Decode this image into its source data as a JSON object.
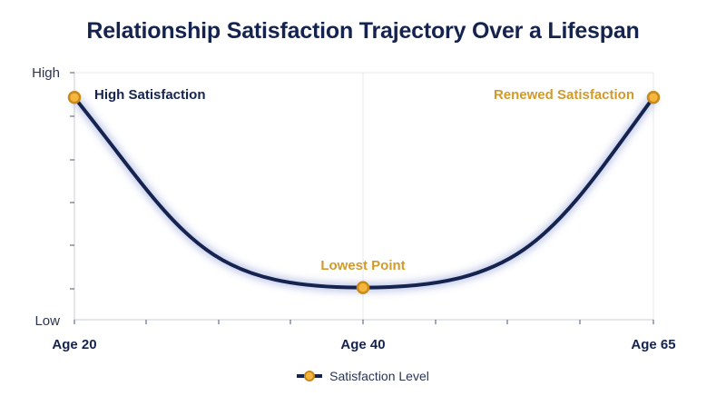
{
  "chart_data": {
    "type": "line",
    "title": "Relationship Satisfaction Trajectory Over a Lifespan",
    "xlabel": "",
    "ylabel": "",
    "x_ticks": [
      "Age 20",
      "Age 40",
      "Age 65"
    ],
    "y_ticks": [
      "High",
      "Low"
    ],
    "series": [
      {
        "name": "Satisfaction Level",
        "points": [
          {
            "x": "Age 20",
            "y": 0.9
          },
          {
            "x": "Age 40",
            "y": 0.13
          },
          {
            "x": "Age 65",
            "y": 0.9
          }
        ]
      }
    ],
    "annotations": [
      {
        "text": "High Satisfaction",
        "point": "Age 20"
      },
      {
        "text": "Lowest Point",
        "point": "Age 40"
      },
      {
        "text": "Renewed Satisfaction",
        "point": "Age 65"
      }
    ],
    "ylim": [
      0,
      1
    ],
    "grid": true,
    "legend_position": "bottom-center",
    "colors": {
      "line": "#15234f",
      "marker_fill": "#f4b63f",
      "marker_stroke": "#c98a1a",
      "annotation_dark": "#15234f",
      "annotation_gold": "#d19a2a",
      "grid": "#e6e8ee"
    }
  }
}
